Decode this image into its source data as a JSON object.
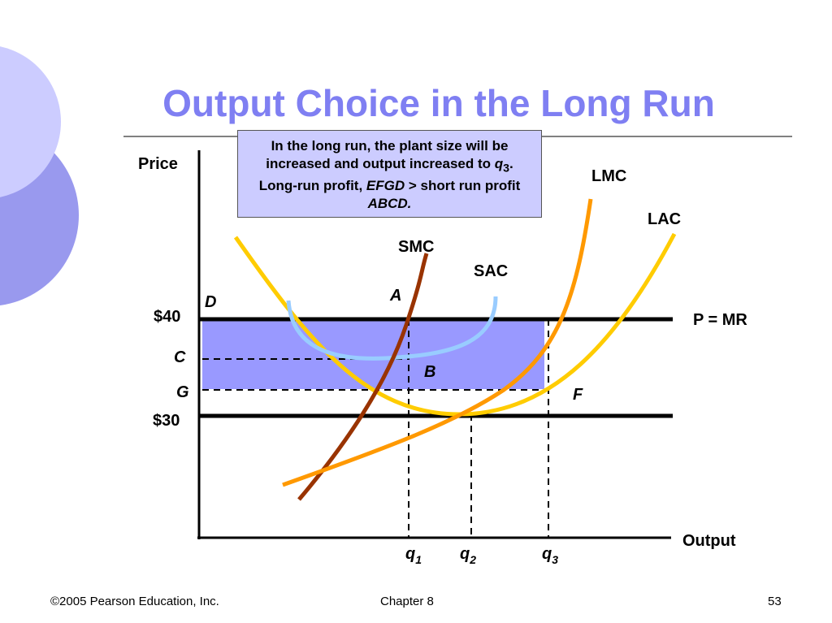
{
  "header": {
    "title": "Output Choice in the Long Run"
  },
  "callout": {
    "parts": [
      "In the long run, the plant size will be increased and output increased to ",
      "q",
      "3",
      ". Long-run profit, ",
      "EFGD",
      " > short run profit ",
      "ABCD."
    ]
  },
  "diagram": {
    "axes": {
      "y": "Price",
      "x": "Output"
    },
    "price_labels": [
      "$40",
      "$30"
    ],
    "point_labels": [
      "D",
      "C",
      "G",
      "A",
      "B",
      "F"
    ],
    "curve_labels": [
      "SMC",
      "SAC",
      "LMC",
      "LAC",
      "P = MR"
    ],
    "quantity_labels": [
      {
        "base": "q",
        "sub": "1"
      },
      {
        "base": "q",
        "sub": "2"
      },
      {
        "base": "q",
        "sub": "3"
      }
    ]
  },
  "footer": {
    "left": "©2005 Pearson Education, Inc.",
    "center": "Chapter 8",
    "right": "53"
  }
}
